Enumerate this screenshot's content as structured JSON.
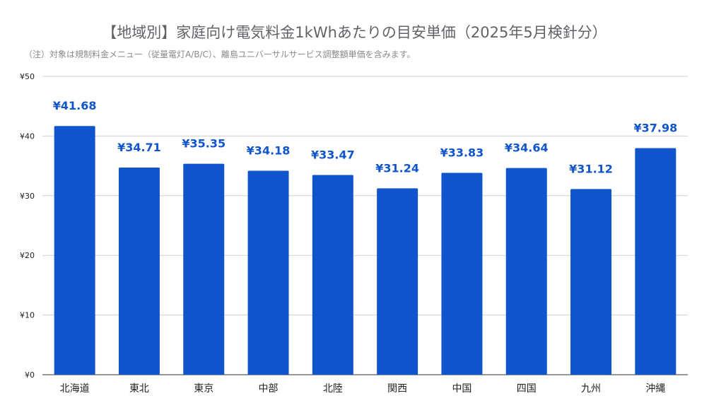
{
  "chart_data": {
    "type": "bar",
    "title": "【地域別】家庭向け電気料金1kWhあたりの目安単価（2025年5月検針分）",
    "subtitle": "（注）対象は規制料金メニュー（従量電灯A/B/C）、離島ユニバーサルサービス調整額単価を含みます。",
    "categories": [
      "北海道",
      "東北",
      "東京",
      "中部",
      "北陸",
      "関西",
      "中国",
      "四国",
      "九州",
      "沖縄"
    ],
    "values": [
      41.68,
      34.71,
      35.35,
      34.18,
      33.47,
      31.24,
      33.83,
      34.64,
      31.12,
      37.98
    ],
    "data_labels": [
      "¥41.68",
      "¥34.71",
      "¥35.35",
      "¥34.18",
      "¥33.47",
      "¥31.24",
      "¥33.83",
      "¥34.64",
      "¥31.12",
      "¥37.98"
    ],
    "y_ticks": [
      0,
      10,
      20,
      30,
      40,
      50
    ],
    "y_tick_labels": [
      "¥0",
      "¥10",
      "¥20",
      "¥30",
      "¥40",
      "¥50"
    ],
    "ylim": [
      0,
      50
    ],
    "xlabel": "",
    "ylabel": "",
    "grid": true,
    "legend": "none",
    "colors": {
      "bar": "#1155cc",
      "data_label": "#1155cc",
      "gridline": "#d0d0d0",
      "axis_line": "#333333",
      "tick_label": "#222222"
    }
  }
}
